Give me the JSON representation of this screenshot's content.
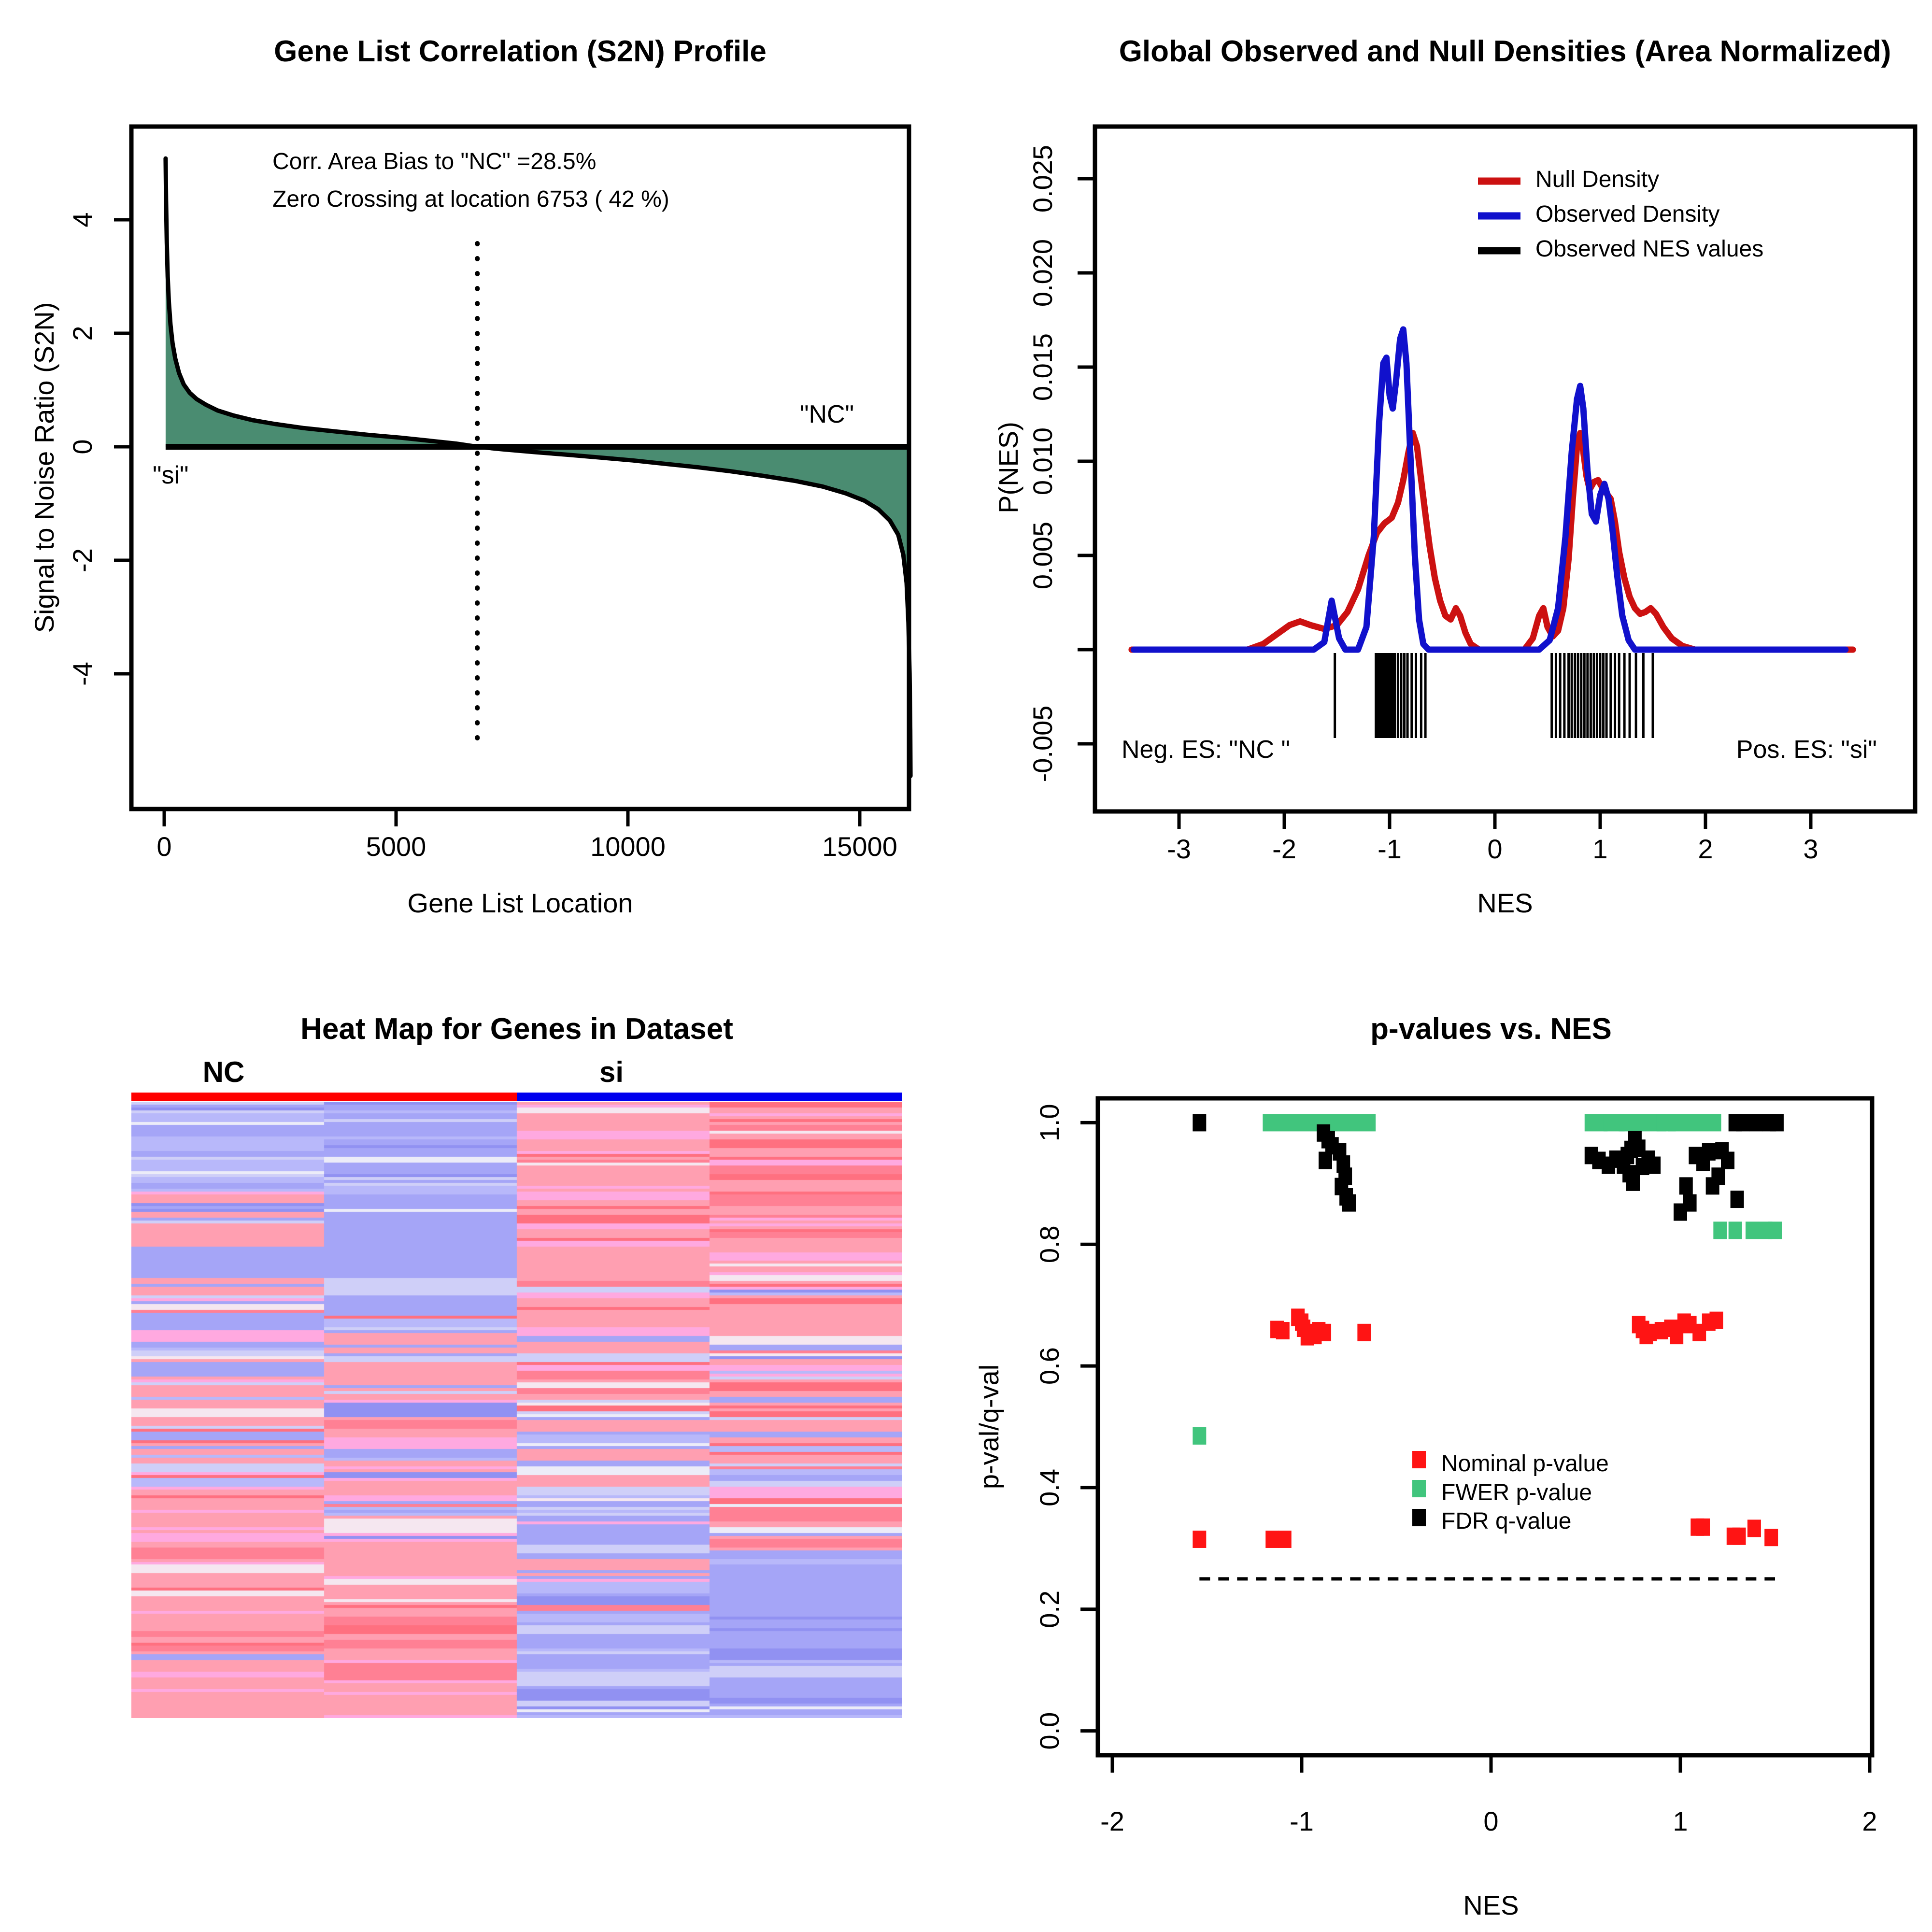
{
  "chart_data": [
    {
      "id": "s2n_profile",
      "type": "area",
      "title": "Gene List Correlation (S2N) Profile",
      "xlabel": "Gene List Location",
      "ylabel": "Signal to Noise Ratio (S2N)",
      "x_ticks": [
        0,
        5000,
        10000,
        15000
      ],
      "y_ticks": [
        4,
        2,
        0,
        -2,
        -4
      ],
      "xlim": [
        -700,
        16160
      ],
      "ylim": [
        -6.1,
        5.65
      ],
      "annotations": {
        "line1": "Corr. Area Bias to \"NC\" =28.5%",
        "line2": "Zero Crossing at location  6753  ( 42  %)",
        "phenotype_right": "\"NC\"",
        "phenotype_left": "\"si\"",
        "zero_cross_x": 6753
      },
      "area_color": "#4A8C71",
      "line_color": "#000000",
      "series": [
        [
          30,
          5.08
        ],
        [
          40,
          4.35
        ],
        [
          55,
          3.6
        ],
        [
          75,
          3.0
        ],
        [
          100,
          2.55
        ],
        [
          135,
          2.15
        ],
        [
          180,
          1.82
        ],
        [
          240,
          1.55
        ],
        [
          320,
          1.3
        ],
        [
          420,
          1.1
        ],
        [
          550,
          0.95
        ],
        [
          700,
          0.84
        ],
        [
          900,
          0.74
        ],
        [
          1150,
          0.64
        ],
        [
          1500,
          0.55
        ],
        [
          1900,
          0.47
        ],
        [
          2400,
          0.4
        ],
        [
          3000,
          0.33
        ],
        [
          3700,
          0.27
        ],
        [
          4400,
          0.21
        ],
        [
          5100,
          0.16
        ],
        [
          5800,
          0.1
        ],
        [
          6300,
          0.055
        ],
        [
          6753,
          0.0
        ],
        [
          7300,
          -0.045
        ],
        [
          8000,
          -0.095
        ],
        [
          8700,
          -0.14
        ],
        [
          9400,
          -0.19
        ],
        [
          10100,
          -0.24
        ],
        [
          10800,
          -0.3
        ],
        [
          11500,
          -0.36
        ],
        [
          12200,
          -0.43
        ],
        [
          12900,
          -0.51
        ],
        [
          13600,
          -0.6
        ],
        [
          14200,
          -0.7
        ],
        [
          14700,
          -0.82
        ],
        [
          15100,
          -0.95
        ],
        [
          15400,
          -1.1
        ],
        [
          15650,
          -1.3
        ],
        [
          15830,
          -1.55
        ],
        [
          15940,
          -1.9
        ],
        [
          16010,
          -2.4
        ],
        [
          16050,
          -3.1
        ],
        [
          16075,
          -4.0
        ],
        [
          16090,
          -5.0
        ],
        [
          16095,
          -5.8
        ]
      ]
    },
    {
      "id": "nes_densities",
      "type": "line",
      "title": "Global Observed and Null Densities (Area Normalized)",
      "xlabel": "NES",
      "ylabel": "P(NES)",
      "x_ticks": [
        -3,
        -2,
        -1,
        0,
        1,
        2,
        3
      ],
      "y_ticks": [
        {
          "v": 0.025,
          "label": "0.025"
        },
        {
          "v": 0.02,
          "label": "0.020"
        },
        {
          "v": 0.015,
          "label": "0.015"
        },
        {
          "v": 0.01,
          "label": "0.010"
        },
        {
          "v": 0.005,
          "label": "0.005"
        },
        {
          "v": 0.0,
          "label": ""
        },
        {
          "v": -0.005,
          "label": "-0.005"
        }
      ],
      "legend": [
        {
          "label": "Null Density",
          "color": "#CC1111"
        },
        {
          "label": "Observed Density",
          "color": "#1111CC"
        },
        {
          "label": "Observed NES values",
          "color": "#000000"
        }
      ],
      "corner_left": "Neg. ES: \"NC \"",
      "corner_right": "Pos. ES: \"si\"",
      "null_density": [
        [
          -3.45,
          0
        ],
        [
          -2.35,
          0
        ],
        [
          -2.2,
          0.0003
        ],
        [
          -2.05,
          0.0009
        ],
        [
          -1.95,
          0.0013
        ],
        [
          -1.85,
          0.0015
        ],
        [
          -1.75,
          0.0013
        ],
        [
          -1.62,
          0.0011
        ],
        [
          -1.5,
          0.0013
        ],
        [
          -1.4,
          0.002
        ],
        [
          -1.3,
          0.0032
        ],
        [
          -1.2,
          0.005
        ],
        [
          -1.12,
          0.0062
        ],
        [
          -1.05,
          0.0067
        ],
        [
          -0.98,
          0.007
        ],
        [
          -0.92,
          0.0078
        ],
        [
          -0.87,
          0.009
        ],
        [
          -0.82,
          0.0105
        ],
        [
          -0.78,
          0.0115
        ],
        [
          -0.74,
          0.0108
        ],
        [
          -0.7,
          0.009
        ],
        [
          -0.66,
          0.0072
        ],
        [
          -0.62,
          0.0055
        ],
        [
          -0.57,
          0.0038
        ],
        [
          -0.52,
          0.0026
        ],
        [
          -0.47,
          0.0018
        ],
        [
          -0.42,
          0.0016
        ],
        [
          -0.37,
          0.0022
        ],
        [
          -0.33,
          0.0018
        ],
        [
          -0.28,
          0.0009
        ],
        [
          -0.23,
          0.0003
        ],
        [
          -0.15,
          0
        ],
        [
          0.28,
          0
        ],
        [
          0.36,
          0.0006
        ],
        [
          0.42,
          0.0018
        ],
        [
          0.46,
          0.0022
        ],
        [
          0.5,
          0.0012
        ],
        [
          0.55,
          0.0007
        ],
        [
          0.6,
          0.001
        ],
        [
          0.65,
          0.0022
        ],
        [
          0.7,
          0.0048
        ],
        [
          0.74,
          0.008
        ],
        [
          0.78,
          0.0108
        ],
        [
          0.81,
          0.0115
        ],
        [
          0.84,
          0.0105
        ],
        [
          0.87,
          0.0092
        ],
        [
          0.9,
          0.0085
        ],
        [
          0.94,
          0.0089
        ],
        [
          0.98,
          0.009
        ],
        [
          1.02,
          0.0086
        ],
        [
          1.06,
          0.0083
        ],
        [
          1.1,
          0.008
        ],
        [
          1.14,
          0.0068
        ],
        [
          1.18,
          0.0052
        ],
        [
          1.23,
          0.0038
        ],
        [
          1.28,
          0.0028
        ],
        [
          1.33,
          0.0022
        ],
        [
          1.38,
          0.0019
        ],
        [
          1.43,
          0.002
        ],
        [
          1.48,
          0.0022
        ],
        [
          1.53,
          0.0019
        ],
        [
          1.6,
          0.0012
        ],
        [
          1.68,
          0.0006
        ],
        [
          1.78,
          0.0002
        ],
        [
          1.9,
          0
        ],
        [
          3.4,
          0
        ]
      ],
      "observed_density": [
        [
          -3.43,
          0
        ],
        [
          -1.72,
          0
        ],
        [
          -1.62,
          0.0004
        ],
        [
          -1.55,
          0.0026
        ],
        [
          -1.48,
          0.0006
        ],
        [
          -1.42,
          0
        ],
        [
          -1.3,
          0
        ],
        [
          -1.22,
          0.0012
        ],
        [
          -1.15,
          0.006
        ],
        [
          -1.1,
          0.012
        ],
        [
          -1.06,
          0.0152
        ],
        [
          -1.03,
          0.0155
        ],
        [
          -1.0,
          0.0135
        ],
        [
          -0.97,
          0.0128
        ],
        [
          -0.94,
          0.0142
        ],
        [
          -0.9,
          0.0165
        ],
        [
          -0.87,
          0.017
        ],
        [
          -0.84,
          0.0152
        ],
        [
          -0.8,
          0.01
        ],
        [
          -0.76,
          0.005
        ],
        [
          -0.72,
          0.0016
        ],
        [
          -0.68,
          0.0003
        ],
        [
          -0.63,
          0
        ],
        [
          0.42,
          0
        ],
        [
          0.52,
          0.0005
        ],
        [
          0.6,
          0.0022
        ],
        [
          0.67,
          0.006
        ],
        [
          0.73,
          0.0105
        ],
        [
          0.78,
          0.0133
        ],
        [
          0.81,
          0.014
        ],
        [
          0.84,
          0.0128
        ],
        [
          0.88,
          0.0095
        ],
        [
          0.92,
          0.0072
        ],
        [
          0.96,
          0.0068
        ],
        [
          1.0,
          0.0082
        ],
        [
          1.04,
          0.0088
        ],
        [
          1.08,
          0.008
        ],
        [
          1.12,
          0.0062
        ],
        [
          1.16,
          0.004
        ],
        [
          1.21,
          0.0018
        ],
        [
          1.27,
          0.0005
        ],
        [
          1.33,
          0
        ],
        [
          3.33,
          0
        ]
      ],
      "nes_rug": [
        -1.52,
        -1.13,
        -1.11,
        -1.09,
        -1.07,
        -1.05,
        -1.03,
        -1.01,
        -0.99,
        -0.97,
        -0.95,
        -0.92,
        -0.89,
        -0.86,
        -0.83,
        -0.79,
        -0.75,
        -0.7,
        -0.66,
        0.54,
        0.58,
        0.62,
        0.66,
        0.7,
        0.73,
        0.76,
        0.79,
        0.82,
        0.85,
        0.88,
        0.91,
        0.94,
        0.97,
        1.0,
        1.03,
        1.06,
        1.1,
        1.14,
        1.18,
        1.23,
        1.28,
        1.34,
        1.41,
        1.5
      ]
    },
    {
      "id": "heatmap",
      "type": "heatmap",
      "title": "Heat Map for Genes in Dataset",
      "col_groups": [
        {
          "label": "NC",
          "bar_color": "#FF0000"
        },
        {
          "label": "si",
          "bar_color": "#0000EE"
        }
      ],
      "n_rows": 213,
      "n_cols": 4,
      "palette": {
        "blue": [
          "#A5A5F7",
          "#B8B8FA",
          "#CFCFF8",
          "#9191F2"
        ],
        "pink": [
          "#FF9FB1",
          "#FFA9E0",
          "#FF8094",
          "#FF7080"
        ],
        "light": [
          "#ECECF8",
          "#F5E7F0"
        ]
      },
      "columns": [
        {
          "group": "NC",
          "mid": 0.38,
          "invert": false
        },
        {
          "group": "NC",
          "mid": 0.47,
          "invert": false
        },
        {
          "group": "si",
          "mid": 0.52,
          "invert": true
        },
        {
          "group": "si",
          "mid": 0.6,
          "invert": true
        }
      ],
      "steepness": 9,
      "seed": 20070413
    },
    {
      "id": "pvalues_vs_nes",
      "type": "scatter",
      "title": "p-values vs. NES",
      "xlabel": "NES",
      "ylabel": "p-val/q-val",
      "x_ticks": [
        -2,
        -1,
        0,
        1,
        2
      ],
      "y_ticks": [
        0.0,
        0.2,
        0.4,
        0.6,
        0.8,
        1.0
      ],
      "xlim": [
        -2.08,
        2.01
      ],
      "ylim": [
        -0.04,
        1.04
      ],
      "legend": [
        {
          "label": "Nominal p-value",
          "color": "#FF1414"
        },
        {
          "label": "FWER p-value",
          "color": "#41C57D"
        },
        {
          "label": "FDR q-value",
          "color": "#000000"
        }
      ],
      "threshold_line": {
        "y": 0.25,
        "x_from": -1.54,
        "x_to": 1.5
      },
      "series": {
        "nominal": [
          [
            -1.13,
            0.66
          ],
          [
            -1.1,
            0.658
          ],
          [
            -1.02,
            0.68
          ],
          [
            -1.0,
            0.672
          ],
          [
            -0.99,
            0.662
          ],
          [
            -0.97,
            0.648
          ],
          [
            -0.95,
            0.655
          ],
          [
            -0.93,
            0.65
          ],
          [
            -0.91,
            0.658
          ],
          [
            -0.88,
            0.655
          ],
          [
            -0.67,
            0.655
          ],
          [
            0.78,
            0.668
          ],
          [
            0.8,
            0.66
          ],
          [
            0.82,
            0.65
          ],
          [
            0.84,
            0.655
          ],
          [
            0.9,
            0.658
          ],
          [
            0.95,
            0.662
          ],
          [
            0.98,
            0.65
          ],
          [
            1.02,
            0.672
          ],
          [
            1.05,
            0.668
          ],
          [
            1.1,
            0.655
          ],
          [
            1.15,
            0.672
          ],
          [
            1.19,
            0.675
          ],
          [
            -1.54,
            0.315
          ],
          [
            -1.155,
            0.315
          ],
          [
            -1.09,
            0.315
          ],
          [
            1.09,
            0.335
          ],
          [
            1.12,
            0.335
          ],
          [
            1.28,
            0.32
          ],
          [
            1.31,
            0.32
          ],
          [
            1.39,
            0.333
          ],
          [
            1.48,
            0.318
          ]
        ],
        "fwer_points": [
          [
            -1.54,
            0.485
          ],
          [
            1.21,
            0.823
          ],
          [
            1.29,
            0.823
          ],
          [
            1.38,
            0.823
          ],
          [
            1.45,
            0.823
          ],
          [
            1.5,
            0.823
          ]
        ],
        "fwer_bands": [
          [
            -1.17,
            -0.645,
            1.0
          ],
          [
            0.53,
            0.58,
            1.0
          ],
          [
            0.63,
            0.67,
            1.0
          ],
          [
            0.71,
            0.89,
            1.0
          ],
          [
            0.91,
            0.94,
            1.0
          ],
          [
            0.97,
            1.18,
            1.0
          ]
        ],
        "fdr": [
          [
            -1.54,
            1.0
          ],
          [
            1.29,
            1.0
          ],
          [
            1.33,
            1.0
          ],
          [
            1.4,
            1.0
          ],
          [
            1.47,
            1.0
          ],
          [
            1.51,
            1.0
          ],
          [
            -0.885,
            0.983
          ],
          [
            -0.86,
            0.972
          ],
          [
            -0.84,
            0.962
          ],
          [
            -0.875,
            0.938
          ],
          [
            -0.8,
            0.952
          ],
          [
            -0.78,
            0.932
          ],
          [
            -0.77,
            0.912
          ],
          [
            -0.79,
            0.895
          ],
          [
            -0.765,
            0.878
          ],
          [
            -0.75,
            0.868
          ],
          [
            0.53,
            0.946
          ],
          [
            0.57,
            0.938
          ],
          [
            0.62,
            0.93
          ],
          [
            0.66,
            0.94
          ],
          [
            0.7,
            0.93
          ],
          [
            0.72,
            0.946
          ],
          [
            0.74,
            0.956
          ],
          [
            0.76,
            0.972
          ],
          [
            0.78,
            0.958
          ],
          [
            0.73,
            0.916
          ],
          [
            0.75,
            0.902
          ],
          [
            0.8,
            0.928
          ],
          [
            0.83,
            0.94
          ],
          [
            0.86,
            0.93
          ],
          [
            1.0,
            0.853
          ],
          [
            1.03,
            0.896
          ],
          [
            1.05,
            0.868
          ],
          [
            1.08,
            0.946
          ],
          [
            1.12,
            0.935
          ],
          [
            1.15,
            0.952
          ],
          [
            1.17,
            0.896
          ],
          [
            1.2,
            0.912
          ],
          [
            1.22,
            0.954
          ],
          [
            1.25,
            0.938
          ],
          [
            1.3,
            0.874
          ]
        ]
      }
    }
  ]
}
